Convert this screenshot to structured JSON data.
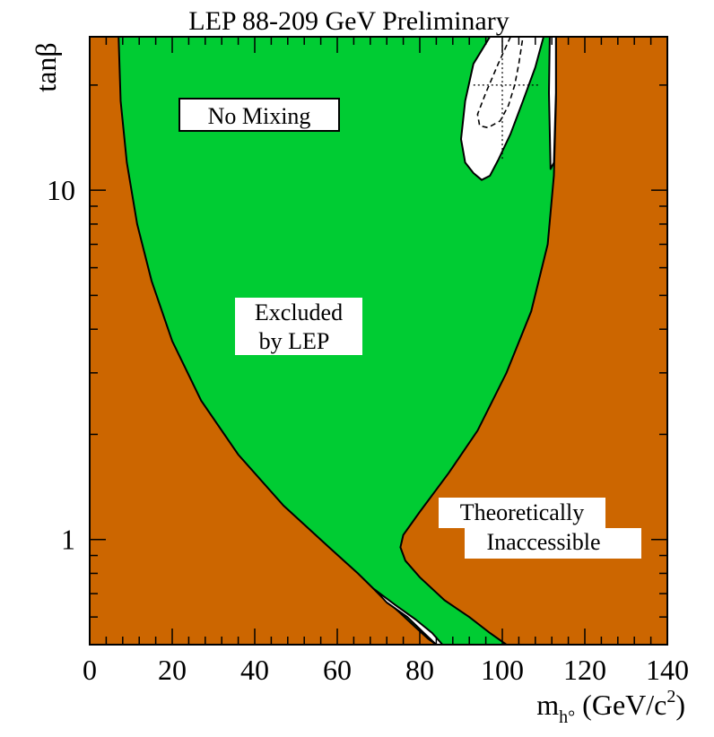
{
  "chart_data": {
    "type": "area",
    "title": "LEP 88-209 GeV Preliminary",
    "xlabel": "m",
    "xlabel_sub": "h°",
    "xlabel_unit_open": " (GeV/c",
    "xlabel_unit_sup": "2",
    "xlabel_unit_close": ")",
    "ylabel": "tanβ",
    "xlim": [
      0,
      140
    ],
    "ylim": [
      0.5,
      27.5
    ],
    "yscale": "log",
    "xticks": [
      0,
      20,
      40,
      60,
      80,
      100,
      120,
      140
    ],
    "yticks": [
      1,
      10
    ],
    "colors": {
      "theoretically_inaccessible": "#cc6600",
      "excluded": "#00cc33",
      "allowed": "#ffffff",
      "outline": "#000000"
    },
    "annotations": {
      "scenario": "No Mixing",
      "excluded_line1": "Excluded",
      "excluded_line2": "by LEP",
      "inaccessible_line1": "Theoretically",
      "inaccessible_line2": "Inaccessible"
    },
    "regions": {
      "left_inaccessible_boundary": [
        {
          "x": 7,
          "y": 27.5
        },
        {
          "x": 7.5,
          "y": 18
        },
        {
          "x": 9,
          "y": 12
        },
        {
          "x": 11.5,
          "y": 8
        },
        {
          "x": 15,
          "y": 5.5
        },
        {
          "x": 20,
          "y": 3.7
        },
        {
          "x": 27,
          "y": 2.5
        },
        {
          "x": 36,
          "y": 1.75
        },
        {
          "x": 47,
          "y": 1.25
        },
        {
          "x": 58,
          "y": 0.95
        },
        {
          "x": 65,
          "y": 0.8
        },
        {
          "x": 70,
          "y": 0.7
        },
        {
          "x": 75,
          "y": 0.62
        },
        {
          "x": 79,
          "y": 0.56
        },
        {
          "x": 82,
          "y": 0.52
        },
        {
          "x": 84,
          "y": 0.5
        }
      ],
      "right_inaccessible_boundary": [
        {
          "x": 113,
          "y": 27.5
        },
        {
          "x": 113,
          "y": 18
        },
        {
          "x": 112.5,
          "y": 11
        },
        {
          "x": 111,
          "y": 7
        },
        {
          "x": 107,
          "y": 4.5
        },
        {
          "x": 101,
          "y": 3
        },
        {
          "x": 94,
          "y": 2.05
        },
        {
          "x": 87,
          "y": 1.55
        },
        {
          "x": 80,
          "y": 1.2
        },
        {
          "x": 76,
          "y": 1.03
        },
        {
          "x": 75.3,
          "y": 0.95
        },
        {
          "x": 76.5,
          "y": 0.87
        },
        {
          "x": 80,
          "y": 0.78
        },
        {
          "x": 86,
          "y": 0.67
        },
        {
          "x": 92,
          "y": 0.6
        },
        {
          "x": 97,
          "y": 0.54
        },
        {
          "x": 101,
          "y": 0.5
        }
      ],
      "allowed_island_top_right": [
        {
          "x": 97,
          "y": 27.5
        },
        {
          "x": 93,
          "y": 23
        },
        {
          "x": 91,
          "y": 18
        },
        {
          "x": 90,
          "y": 14
        },
        {
          "x": 91,
          "y": 12
        },
        {
          "x": 93,
          "y": 11.2
        },
        {
          "x": 95,
          "y": 10.7
        },
        {
          "x": 97,
          "y": 11
        },
        {
          "x": 99,
          "y": 12.2
        },
        {
          "x": 102,
          "y": 14.5
        },
        {
          "x": 105,
          "y": 18
        },
        {
          "x": 108,
          "y": 22.5
        },
        {
          "x": 110,
          "y": 27.5
        }
      ],
      "allowed_sliver_right": [
        {
          "x": 111.5,
          "y": 27.5
        },
        {
          "x": 111.3,
          "y": 19
        },
        {
          "x": 111.7,
          "y": 11.5
        },
        {
          "x": 112.5,
          "y": 12
        },
        {
          "x": 113,
          "y": 19
        },
        {
          "x": 113,
          "y": 27.5
        }
      ],
      "allowed_sliver_bottom": [
        {
          "x": 69,
          "y": 0.72
        },
        {
          "x": 74,
          "y": 0.65
        },
        {
          "x": 79,
          "y": 0.59
        },
        {
          "x": 83,
          "y": 0.54
        },
        {
          "x": 85.5,
          "y": 0.5
        },
        {
          "x": 84,
          "y": 0.5
        },
        {
          "x": 81,
          "y": 0.54
        },
        {
          "x": 77,
          "y": 0.6
        },
        {
          "x": 72,
          "y": 0.66
        }
      ]
    },
    "expected_limit_dashed": [
      {
        "x": 102,
        "y": 27.5
      },
      {
        "x": 99,
        "y": 23
      },
      {
        "x": 96,
        "y": 19
      },
      {
        "x": 94,
        "y": 16.5
      },
      {
        "x": 94.5,
        "y": 15.3
      },
      {
        "x": 96.5,
        "y": 15.1
      },
      {
        "x": 99.5,
        "y": 15.8
      },
      {
        "x": 101.5,
        "y": 17.5
      },
      {
        "x": 103,
        "y": 20
      },
      {
        "x": 104,
        "y": 23
      },
      {
        "x": 105,
        "y": 27.5
      }
    ],
    "reference_dotted": {
      "vertical": {
        "x": 100,
        "y_from": 12.3,
        "y_to": 27.5
      },
      "horizontal": {
        "y": 20,
        "x_from": 93,
        "x_to": 109
      }
    }
  }
}
